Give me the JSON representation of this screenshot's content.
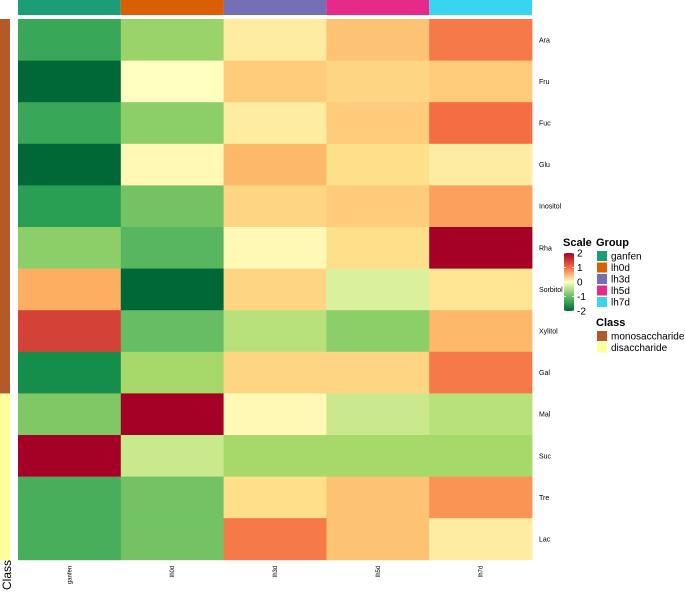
{
  "chart_data": {
    "type": "heatmap",
    "columns": [
      "ganfen",
      "lh0d",
      "lh3d",
      "lh5d",
      "lh7d"
    ],
    "rows": [
      "Ara",
      "Fru",
      "Fuc",
      "Glu",
      "Inositol",
      "Rha",
      "Sorbitol",
      "Xylitol",
      "Gal",
      "Mal",
      "Suc",
      "Tre",
      "Lac"
    ],
    "row_class": [
      "monosaccharide",
      "monosaccharide",
      "monosaccharide",
      "monosaccharide",
      "monosaccharide",
      "monosaccharide",
      "monosaccharide",
      "monosaccharide",
      "monosaccharide",
      "disaccharide",
      "disaccharide",
      "disaccharide",
      "disaccharide"
    ],
    "values": [
      [
        -1.3,
        -0.6,
        0.3,
        0.8,
        1.4
      ],
      [
        -2.1,
        0.0,
        0.7,
        0.6,
        0.7
      ],
      [
        -1.3,
        -0.7,
        0.3,
        0.7,
        1.5
      ],
      [
        -2.2,
        0.1,
        0.9,
        0.5,
        0.3
      ],
      [
        -1.4,
        -0.9,
        0.6,
        0.7,
        1.1
      ],
      [
        -0.7,
        -1.1,
        0.1,
        0.5,
        2.0
      ],
      [
        1.0,
        -2.2,
        0.6,
        -0.2,
        0.4
      ],
      [
        1.7,
        -1.0,
        -0.4,
        -0.7,
        0.9
      ],
      [
        -1.6,
        -0.5,
        0.6,
        0.6,
        1.4
      ],
      [
        -0.8,
        2.1,
        0.1,
        -0.3,
        -0.4
      ],
      [
        2.3,
        -0.3,
        -0.5,
        -0.5,
        -0.5
      ],
      [
        -1.2,
        -0.9,
        0.5,
        0.8,
        1.2
      ],
      [
        -1.2,
        -0.9,
        1.4,
        0.8,
        0.3
      ]
    ],
    "scale": {
      "title": "Scale",
      "min": -2,
      "max": 2,
      "ticks": [
        2,
        1,
        0,
        -1,
        -2
      ]
    },
    "group_legend": {
      "title": "Group",
      "items": [
        {
          "label": "ganfen",
          "color": "#1b9e77"
        },
        {
          "label": "lh0d",
          "color": "#d95f02"
        },
        {
          "label": "lh3d",
          "color": "#7570b3"
        },
        {
          "label": "lh5d",
          "color": "#e7298a"
        },
        {
          "label": "lh7d",
          "color": "#37d5f0"
        }
      ]
    },
    "class_legend": {
      "title": "Class",
      "items": [
        {
          "label": "monosaccharide",
          "color": "#b35a2a"
        },
        {
          "label": "disaccharide",
          "color": "#ffff99"
        }
      ]
    },
    "class_axis_label": "Class"
  }
}
